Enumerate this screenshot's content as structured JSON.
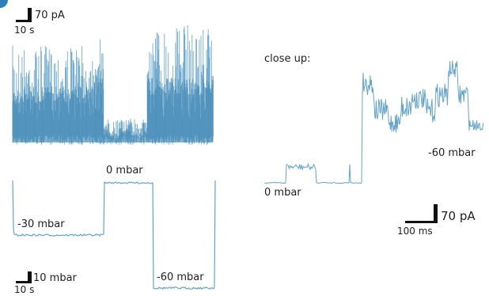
{
  "colors": {
    "trace": "#5b9ec5",
    "trace_dark": "#3f86b3",
    "scale_bar": "#111111",
    "corner_accent": "#2c7fb8"
  },
  "current_recording": {
    "scale_bar": {
      "y_label": "70 pA",
      "x_label": "10 s"
    }
  },
  "pressure_protocol": {
    "steps": [
      {
        "label": "-30 mbar",
        "value": -30
      },
      {
        "label": "0 mbar",
        "value": 0
      },
      {
        "label": "-60 mbar",
        "value": -60
      }
    ],
    "scale_bar": {
      "y_label": "10 mbar",
      "x_label": "10 s"
    }
  },
  "close_up": {
    "title": "close up:",
    "left_label": "0 mbar",
    "right_label": "-60 mbar",
    "scale_bar": {
      "y_label": "70 pA",
      "x_label": "100 ms"
    }
  }
}
